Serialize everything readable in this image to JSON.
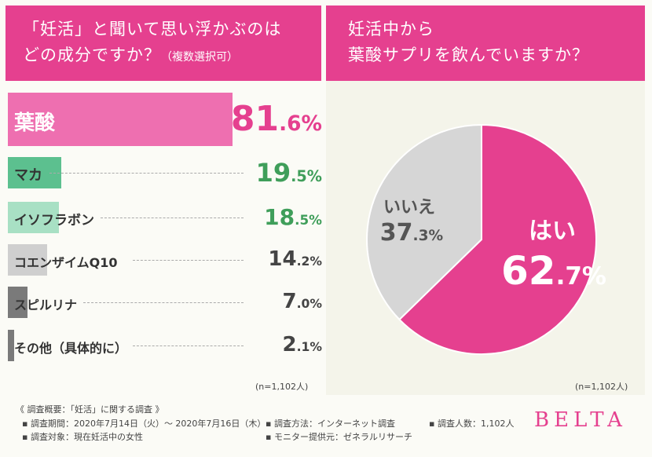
{
  "left_header": {
    "line1": "「妊活」と聞いて思い浮かぶのは",
    "line2_main": "どの成分ですか？",
    "line2_small": "（複数選択可）"
  },
  "right_header": {
    "line1": "妊活中から",
    "line2": "葉酸サプリを飲んでいますか？"
  },
  "left_n": "(n=1,102人)",
  "right_n": "(n=1,102人)",
  "colors": {
    "accent_pink": "#e5408f",
    "bar_pink": "#ee6fb0",
    "green": "#5cc08f",
    "light_green": "#a8e0c4",
    "gray": "#cfcfcf",
    "dark_gray": "#7a7a7a",
    "pie_gray": "#d6d6d6"
  },
  "chart_data": [
    {
      "type": "bar",
      "title": "「妊活」と聞いて思い浮かぶのはどの成分ですか？（複数選択可）",
      "orientation": "horizontal",
      "unit": "%",
      "categories": [
        "葉酸",
        "マカ",
        "イソフラボン",
        "コエンザイムQ10",
        "スピルリナ",
        "その他（具体的に）"
      ],
      "values": [
        81.6,
        19.5,
        18.5,
        14.2,
        7.0,
        2.1
      ],
      "value_labels": [
        {
          "int": "81",
          "dec": ".6",
          "pct": "%"
        },
        {
          "int": "19",
          "dec": ".5",
          "pct": "%"
        },
        {
          "int": "18",
          "dec": ".5",
          "pct": "%"
        },
        {
          "int": "14",
          "dec": ".2",
          "pct": "%"
        },
        {
          "int": "7",
          "dec": ".0",
          "pct": "%"
        },
        {
          "int": "2",
          "dec": ".1",
          "pct": "%"
        }
      ],
      "note": "(n=1,102人)"
    },
    {
      "type": "pie",
      "title": "妊活中から葉酸サプリを飲んでいますか？",
      "categories": [
        "はい",
        "いいえ"
      ],
      "values": [
        62.7,
        37.3
      ],
      "value_labels": [
        {
          "int": "62",
          "dec": ".7",
          "pct": "%"
        },
        {
          "int": "37",
          "dec": ".3",
          "pct": "%"
        }
      ],
      "note": "(n=1,102人)"
    }
  ],
  "footer": {
    "heading": "《 調査概要：「妊活」に関する調査 》",
    "period": "▪ 調査期間：2020年7月14日（火）～ 2020年7月16日（木）",
    "target": "▪ 調査対象：現在妊活中の女性",
    "method": "▪ 調査方法：インターネット調査",
    "provider": "▪ モニター提供元：ゼネラルリサーチ",
    "count": "▪ 調査人数：1,102人"
  },
  "brand": "BELTA"
}
